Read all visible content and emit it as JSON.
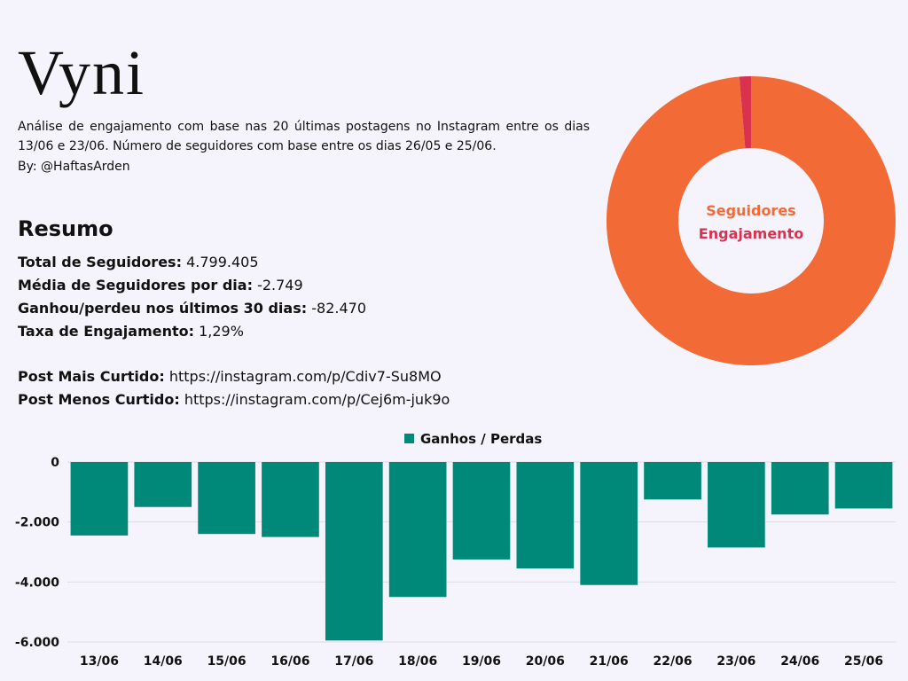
{
  "header": {
    "title": "Vyni",
    "description": "Análise de engajamento com base nas 20 últimas postagens no Instagram entre os dias 13/06 e 23/06. Número de seguidores com base entre os dias 26/05 e 25/06.",
    "author": "By: @HaftasArden"
  },
  "summary": {
    "heading": "Resumo",
    "items": [
      {
        "label": "Total de Seguidores:",
        "value": "4.799.405"
      },
      {
        "label": "Média de Seguidores por dia:",
        "value": "-2.749"
      },
      {
        "label": "Ganhou/perdeu nos últimos 30 dias:",
        "value": "-82.470"
      },
      {
        "label": "Taxa de Engajamento:",
        "value": "1,29%"
      }
    ],
    "posts": [
      {
        "label": "Post Mais Curtido:",
        "value": "https://instagram.com/p/Cdiv7-Su8MO"
      },
      {
        "label": "Post Menos Curtido:",
        "value": "https://instagram.com/p/Cej6m-juk9o"
      }
    ]
  },
  "colors": {
    "seguidores": "#f26a35",
    "engajamento": "#d8324f",
    "bars": "#008878",
    "background": "#f5f3fb"
  },
  "chart_data": [
    {
      "type": "pie",
      "donut": true,
      "labels": [
        "Seguidores",
        "Engajamento"
      ],
      "values": [
        98.71,
        1.29
      ]
    },
    {
      "type": "bar",
      "legend": "Ganhos / Perdas",
      "legend_position": "top-center",
      "categories": [
        "13/06",
        "14/06",
        "15/06",
        "16/06",
        "17/06",
        "18/06",
        "19/06",
        "20/06",
        "21/06",
        "22/06",
        "23/06",
        "24/06",
        "25/06"
      ],
      "series": [
        {
          "name": "Ganhos / Perdas",
          "values": [
            -2450,
            -1500,
            -2400,
            -2500,
            -5950,
            -4500,
            -3250,
            -3550,
            -4100,
            -1250,
            -2850,
            -1750,
            -1550
          ]
        }
      ],
      "ylim": [
        -6000,
        0
      ],
      "yticks": [
        0,
        -2000,
        -4000,
        -6000
      ],
      "ytick_labels": [
        "0",
        "-2.000",
        "-4.000",
        "-6.000"
      ],
      "grid": true
    }
  ]
}
